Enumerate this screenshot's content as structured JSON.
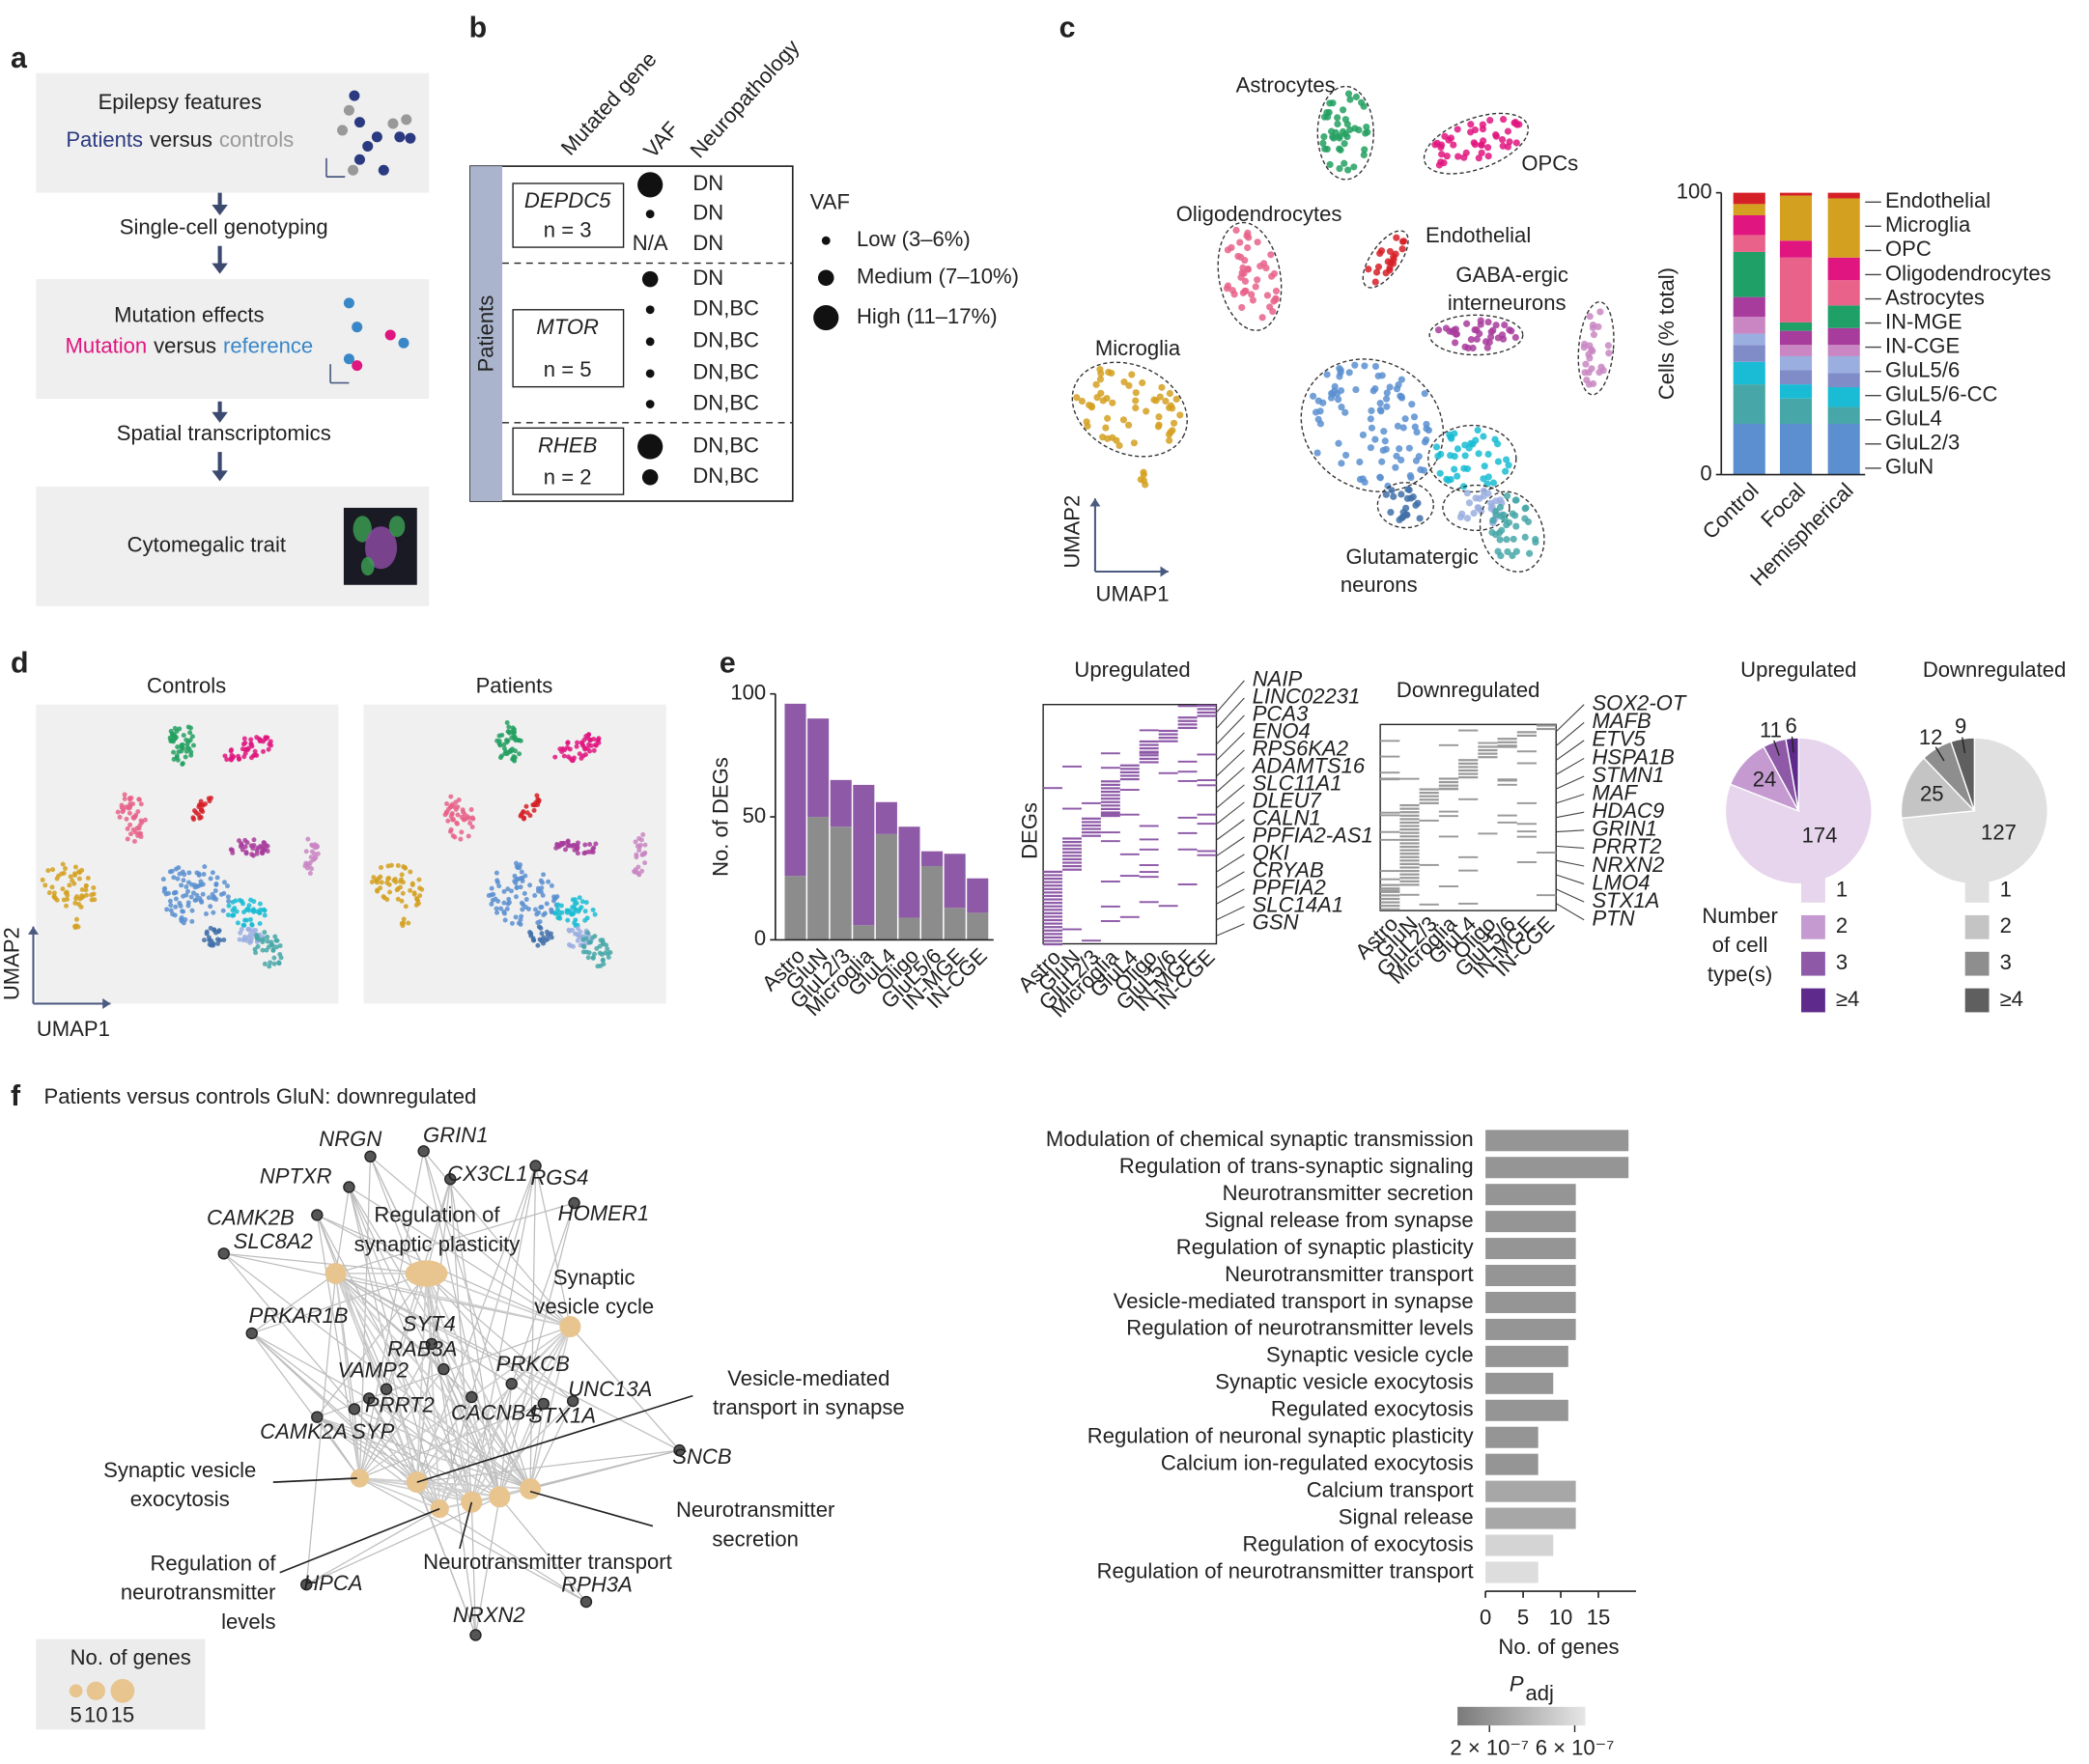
{
  "panel_a": {
    "label": "a",
    "box1_title": "Epilepsy features",
    "box1_line": [
      "Patients",
      "versus",
      "controls"
    ],
    "step1": "Single-cell genotyping",
    "box2_title": "Mutation effects",
    "box2_line": [
      "Mutation",
      "versus",
      "reference"
    ],
    "step2": "Spatial transcriptomics",
    "box3_title": "Cytomegalic  trait"
  },
  "panel_b": {
    "label": "b",
    "headers": [
      "Mutated gene",
      "VAF",
      "Neuropathology"
    ],
    "group": "Patients",
    "genes": [
      {
        "name": "DEPDC5",
        "n": "n = 3",
        "vaf": [
          2,
          0,
          "N/A"
        ],
        "neuropathology": [
          "DN",
          "DN",
          "DN"
        ]
      },
      {
        "name": "MTOR",
        "n": "n = 5",
        "vaf": [
          1,
          0,
          0,
          0,
          0
        ],
        "neuropathology": [
          "DN",
          "DN,BC",
          "DN,BC",
          "DN,BC",
          "DN,BC"
        ]
      },
      {
        "name": "RHEB",
        "n": "n = 2",
        "vaf": [
          2,
          1
        ],
        "neuropathology": [
          "DN,BC",
          "DN,BC"
        ]
      }
    ],
    "legend_title": "VAF",
    "vaf_levels": [
      "Low (3–6%)",
      "Medium (7–10%)",
      "High (11–17%)"
    ]
  },
  "panel_c": {
    "label": "c",
    "cluster_labels": [
      [
        "Astrocytes"
      ],
      [
        "OPCs"
      ],
      [
        "Oligodendrocytes"
      ],
      [
        "Endothelial"
      ],
      [
        "GABA-ergic",
        "interneurons"
      ],
      [
        "Microglia"
      ],
      [
        "Glutamatergic",
        "neurons"
      ]
    ],
    "xlabel": "UMAP1",
    "ylabel": "UMAP2"
  },
  "panel_d": {
    "label": "d",
    "titles": [
      "Controls",
      "Patients"
    ],
    "xlabel": "UMAP1",
    "ylabel": "UMAP2"
  },
  "panel_e": {
    "label": "e",
    "up": {
      "title": "Upregulated",
      "ylabel": "DEGs",
      "genes": [
        "NAIP",
        "LINC02231",
        "PCA3",
        "ENO4",
        "RPS6KA2",
        "ADAMTS16",
        "SLC11A1",
        "DLEU7",
        "CALN1",
        "PPFIA2-AS1",
        "QKI",
        "CRYAB",
        "PPFIA2",
        "SLC14A1",
        "GSN"
      ],
      "categories": [
        "Astro",
        "GluN",
        "GluL2/3",
        "Microglia",
        "GluL4",
        "Oligo",
        "GluL5/6",
        "IN-MGE",
        "IN-CGE"
      ]
    },
    "down": {
      "title": "Downregulated",
      "genes": [
        "SOX2-OT",
        "MAFB",
        "ETV5",
        "HSPA1B",
        "STMN1",
        "MAF",
        "HDAC9",
        "GRIN1",
        "PRRT2",
        "NRXN2",
        "LMO4",
        "STX1A",
        "PTN"
      ],
      "categories": [
        "Astro",
        "GluN",
        "GluL2/3",
        "Microglia",
        "GluL4",
        "Oligo",
        "GluL5/6",
        "IN-MGE",
        "IN-CGE"
      ]
    }
  },
  "panel_f": {
    "label": "f",
    "title": "Patients versus controls GluN: downregulated",
    "genes": [
      "NRGN",
      "GRIN1",
      "NPTXR",
      "CX3CL1",
      "RGS4",
      "CAMK2B",
      "HOMER1",
      "SLC8A2",
      "PRKAR1B",
      "SYT4",
      "RAB3A",
      "PRKCB",
      "VAMP2",
      "UNC13A",
      "PRRT2",
      "CACNB4",
      "STX1A",
      "CAMK2A",
      "SYP",
      "SNCB",
      "HPCA",
      "NRXN2",
      "RPH3A"
    ],
    "terms": [
      [
        "Regulation of",
        "synaptic plasticity"
      ],
      [
        "Synaptic",
        "vesicle cycle"
      ],
      [
        "Vesicle-mediated",
        "transport in synapse"
      ],
      [
        "Synaptic vesicle",
        "exocytosis"
      ],
      [
        "Neurotransmitter",
        "secretion"
      ],
      [
        "Regulation of",
        "neurotransmitter",
        "levels"
      ],
      [
        "Neurotransmitter transport"
      ]
    ],
    "legend": {
      "title": "No. of genes",
      "sizes": [
        5,
        10,
        15
      ]
    }
  },
  "chart_data": [
    {
      "type": "stacked_bar",
      "ylabel": "Cells (% total)",
      "categories": [
        "Control",
        "Focal",
        "Hemispherical"
      ],
      "ylim": [
        0,
        100
      ],
      "yticks": [
        0,
        100
      ],
      "series": [
        {
          "name": "GluN",
          "color": "#5b8fd0",
          "values": [
            18,
            18,
            18
          ]
        },
        {
          "name": "GluL2/3",
          "color": "#47a7a8",
          "values": [
            14,
            9,
            6
          ]
        },
        {
          "name": "GluL4",
          "color": "#19bcd4",
          "values": [
            8,
            5,
            7
          ]
        },
        {
          "name": "GluL5/6-CC",
          "color": "#7f8cc8",
          "values": [
            6,
            5,
            5
          ]
        },
        {
          "name": "GluL5/6",
          "color": "#9aaee0",
          "values": [
            4,
            5,
            6
          ]
        },
        {
          "name": "IN-CGE",
          "color": "#c986c3",
          "values": [
            6,
            4,
            4
          ]
        },
        {
          "name": "IN-MGE",
          "color": "#a83c9c",
          "values": [
            7,
            5,
            6
          ]
        },
        {
          "name": "Astrocytes",
          "color": "#1fa067",
          "values": [
            16,
            3,
            8
          ]
        },
        {
          "name": "Oligodendrocytes",
          "color": "#e8628a",
          "values": [
            6,
            23,
            9
          ]
        },
        {
          "name": "OPC",
          "color": "#e0157f",
          "values": [
            7,
            6,
            8
          ]
        },
        {
          "name": "Microglia",
          "color": "#d4a020",
          "values": [
            4,
            16,
            21
          ]
        },
        {
          "name": "Endothelial",
          "color": "#d62027",
          "values": [
            4,
            1,
            2
          ]
        }
      ]
    },
    {
      "type": "stacked_bar",
      "ylabel": "No. of DEGs",
      "categories": [
        "Astro",
        "GluN",
        "GluL2/3",
        "Microglia",
        "GluL4",
        "Oligo",
        "GluL5/6",
        "IN-MGE",
        "IN-CGE"
      ],
      "ylim": [
        0,
        100
      ],
      "yticks": [
        0,
        50,
        100
      ],
      "series": [
        {
          "color": "#8c8c8c",
          "values": [
            26,
            50,
            46,
            6,
            43,
            9,
            30,
            13,
            11
          ]
        },
        {
          "color": "#8e5aa8",
          "values": [
            70,
            40,
            19,
            57,
            13,
            37,
            6,
            22,
            14
          ]
        }
      ]
    },
    {
      "type": "pie",
      "title": "Upregulated",
      "values": [
        174,
        24,
        11,
        6
      ],
      "colors": [
        "#e6d5ec",
        "#c49ad0",
        "#8e5aa8",
        "#5e2a8c"
      ],
      "labels": [
        "1",
        "2",
        "3",
        "≥4"
      ],
      "legend_title": [
        "Number",
        "of cell",
        "type(s)"
      ]
    },
    {
      "type": "pie",
      "title": "Downregulated",
      "values": [
        127,
        25,
        12,
        9
      ],
      "colors": [
        "#e0e0e0",
        "#c4c4c4",
        "#8e8e8e",
        "#5f5f5f"
      ],
      "labels": [
        "1",
        "2",
        "3",
        "≥4"
      ]
    },
    {
      "type": "hbar",
      "categories": [
        "Modulation of chemical synaptic transmission",
        "Regulation of trans-synaptic signaling",
        "Neurotransmitter secretion",
        "Signal release from synapse",
        "Regulation of synaptic plasticity",
        "Neurotransmitter transport",
        "Vesicle-mediated transport in synapse",
        "Regulation of neurotransmitter levels",
        "Synaptic vesicle cycle",
        "Synaptic vesicle exocytosis",
        "Regulated exocytosis",
        "Regulation of neuronal synaptic plasticity",
        "Calcium ion-regulated exocytosis",
        "Calcium transport",
        "Signal release",
        "Regulation of exocytosis",
        "Regulation of neurotransmitter transport"
      ],
      "values": [
        19,
        19,
        12,
        12,
        12,
        12,
        12,
        12,
        11,
        9,
        11,
        7,
        7,
        12,
        12,
        9,
        7
      ],
      "padj": [
        2e-07,
        2e-07,
        2e-07,
        2e-07,
        2e-07,
        2e-07,
        2e-07,
        2e-07,
        2e-07,
        2e-07,
        2e-07,
        2e-07,
        2e-07,
        3e-07,
        3e-07,
        5.5e-07,
        6e-07
      ],
      "xlim": [
        0,
        20
      ],
      "xticks": [
        0,
        5,
        10,
        15
      ],
      "xlabel": "No. of genes",
      "colorbar": {
        "title": "P",
        "title_sub": "adj",
        "clim": [
          5e-08,
          6.5e-07
        ],
        "ticks": [
          {
            "value": 2e-07,
            "label": "2 × 10⁻⁷"
          },
          {
            "value": 6e-07,
            "label": "6 × 10⁻⁷"
          }
        ]
      }
    }
  ]
}
